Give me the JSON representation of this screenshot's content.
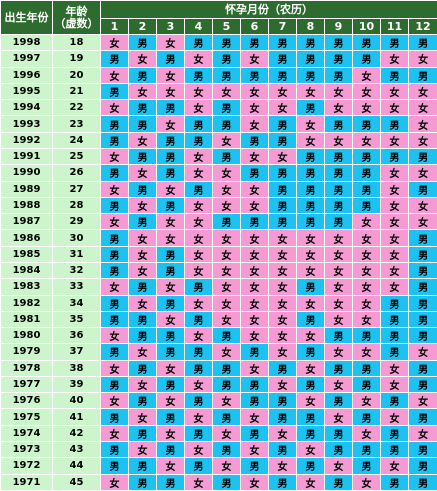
{
  "headers": {
    "birth_year": "出生年份",
    "age_line1": "年龄",
    "age_line2": "（虚数）",
    "conception_month": "怀孕月份（农历）",
    "months": [
      "1",
      "2",
      "3",
      "4",
      "5",
      "6",
      "7",
      "8",
      "9",
      "10",
      "11",
      "12"
    ]
  },
  "colors": {
    "male": "#1ec2f0",
    "female": "#f59ad2",
    "header": "#2e6b2e",
    "side": "#ccf5cc"
  },
  "rows": [
    {
      "year": "1998",
      "age": "18",
      "cells": [
        "女",
        "男",
        "女",
        "男",
        "男",
        "男",
        "男",
        "男",
        "男",
        "男",
        "男",
        "男"
      ]
    },
    {
      "year": "1997",
      "age": "19",
      "cells": [
        "男",
        "女",
        "男",
        "女",
        "男",
        "女",
        "男",
        "男",
        "男",
        "男",
        "女",
        "女"
      ]
    },
    {
      "year": "1996",
      "age": "20",
      "cells": [
        "女",
        "男",
        "女",
        "男",
        "男",
        "男",
        "男",
        "男",
        "男",
        "女",
        "男",
        "男"
      ]
    },
    {
      "year": "1995",
      "age": "21",
      "cells": [
        "男",
        "女",
        "女",
        "女",
        "女",
        "女",
        "女",
        "女",
        "女",
        "女",
        "女",
        "女"
      ]
    },
    {
      "year": "1994",
      "age": "22",
      "cells": [
        "女",
        "男",
        "男",
        "女",
        "男",
        "女",
        "女",
        "男",
        "女",
        "女",
        "女",
        "女"
      ]
    },
    {
      "year": "1993",
      "age": "23",
      "cells": [
        "男",
        "男",
        "女",
        "男",
        "男",
        "女",
        "男",
        "女",
        "男",
        "男",
        "男",
        "女"
      ]
    },
    {
      "year": "1992",
      "age": "24",
      "cells": [
        "男",
        "女",
        "男",
        "男",
        "女",
        "男",
        "男",
        "女",
        "女",
        "女",
        "女",
        "女"
      ]
    },
    {
      "year": "1991",
      "age": "25",
      "cells": [
        "女",
        "男",
        "男",
        "女",
        "男",
        "女",
        "女",
        "男",
        "男",
        "男",
        "男",
        "男"
      ]
    },
    {
      "year": "1990",
      "age": "26",
      "cells": [
        "男",
        "女",
        "男",
        "女",
        "女",
        "男",
        "男",
        "男",
        "男",
        "男",
        "女",
        "女"
      ]
    },
    {
      "year": "1989",
      "age": "27",
      "cells": [
        "女",
        "男",
        "女",
        "男",
        "女",
        "女",
        "男",
        "男",
        "男",
        "男",
        "女",
        "男"
      ]
    },
    {
      "year": "1988",
      "age": "28",
      "cells": [
        "男",
        "女",
        "男",
        "女",
        "女",
        "女",
        "男",
        "男",
        "男",
        "男",
        "女",
        "女"
      ]
    },
    {
      "year": "1987",
      "age": "29",
      "cells": [
        "女",
        "男",
        "女",
        "女",
        "男",
        "男",
        "男",
        "男",
        "男",
        "女",
        "女",
        "女"
      ]
    },
    {
      "year": "1986",
      "age": "30",
      "cells": [
        "男",
        "女",
        "女",
        "女",
        "女",
        "女",
        "女",
        "女",
        "女",
        "女",
        "女",
        "男"
      ]
    },
    {
      "year": "1985",
      "age": "31",
      "cells": [
        "男",
        "女",
        "男",
        "女",
        "女",
        "女",
        "女",
        "女",
        "女",
        "女",
        "女",
        "男"
      ]
    },
    {
      "year": "1984",
      "age": "32",
      "cells": [
        "男",
        "女",
        "男",
        "女",
        "女",
        "女",
        "女",
        "女",
        "女",
        "女",
        "女",
        "男"
      ]
    },
    {
      "year": "1983",
      "age": "33",
      "cells": [
        "女",
        "男",
        "女",
        "男",
        "女",
        "女",
        "女",
        "男",
        "女",
        "女",
        "女",
        "男"
      ]
    },
    {
      "year": "1982",
      "age": "34",
      "cells": [
        "男",
        "女",
        "男",
        "女",
        "女",
        "女",
        "女",
        "女",
        "女",
        "女",
        "男",
        "男"
      ]
    },
    {
      "year": "1981",
      "age": "35",
      "cells": [
        "男",
        "男",
        "女",
        "男",
        "女",
        "女",
        "女",
        "男",
        "女",
        "女",
        "男",
        "男"
      ]
    },
    {
      "year": "1980",
      "age": "36",
      "cells": [
        "女",
        "男",
        "男",
        "女",
        "男",
        "女",
        "女",
        "女",
        "男",
        "男",
        "男",
        "男"
      ]
    },
    {
      "year": "1979",
      "age": "37",
      "cells": [
        "男",
        "女",
        "男",
        "男",
        "女",
        "男",
        "女",
        "男",
        "女",
        "女",
        "男",
        "女"
      ]
    },
    {
      "year": "1978",
      "age": "38",
      "cells": [
        "女",
        "男",
        "女",
        "男",
        "男",
        "女",
        "男",
        "女",
        "男",
        "男",
        "女",
        "男"
      ]
    },
    {
      "year": "1977",
      "age": "39",
      "cells": [
        "男",
        "女",
        "男",
        "女",
        "男",
        "男",
        "女",
        "男",
        "女",
        "男",
        "女",
        "男"
      ]
    },
    {
      "year": "1976",
      "age": "40",
      "cells": [
        "女",
        "男",
        "女",
        "男",
        "女",
        "男",
        "男",
        "女",
        "男",
        "女",
        "男",
        "女"
      ]
    },
    {
      "year": "1975",
      "age": "41",
      "cells": [
        "男",
        "女",
        "男",
        "女",
        "男",
        "女",
        "男",
        "男",
        "女",
        "男",
        "女",
        "男"
      ]
    },
    {
      "year": "1974",
      "age": "42",
      "cells": [
        "女",
        "男",
        "女",
        "男",
        "女",
        "男",
        "女",
        "男",
        "男",
        "女",
        "男",
        "女"
      ]
    },
    {
      "year": "1973",
      "age": "43",
      "cells": [
        "男",
        "女",
        "男",
        "女",
        "男",
        "女",
        "男",
        "女",
        "男",
        "男",
        "男",
        "男"
      ]
    },
    {
      "year": "1972",
      "age": "44",
      "cells": [
        "男",
        "男",
        "女",
        "男",
        "女",
        "男",
        "女",
        "男",
        "女",
        "男",
        "女",
        "男"
      ]
    },
    {
      "year": "1971",
      "age": "45",
      "cells": [
        "女",
        "男",
        "男",
        "女",
        "男",
        "女",
        "男",
        "女",
        "男",
        "女",
        "男",
        "男"
      ]
    }
  ]
}
